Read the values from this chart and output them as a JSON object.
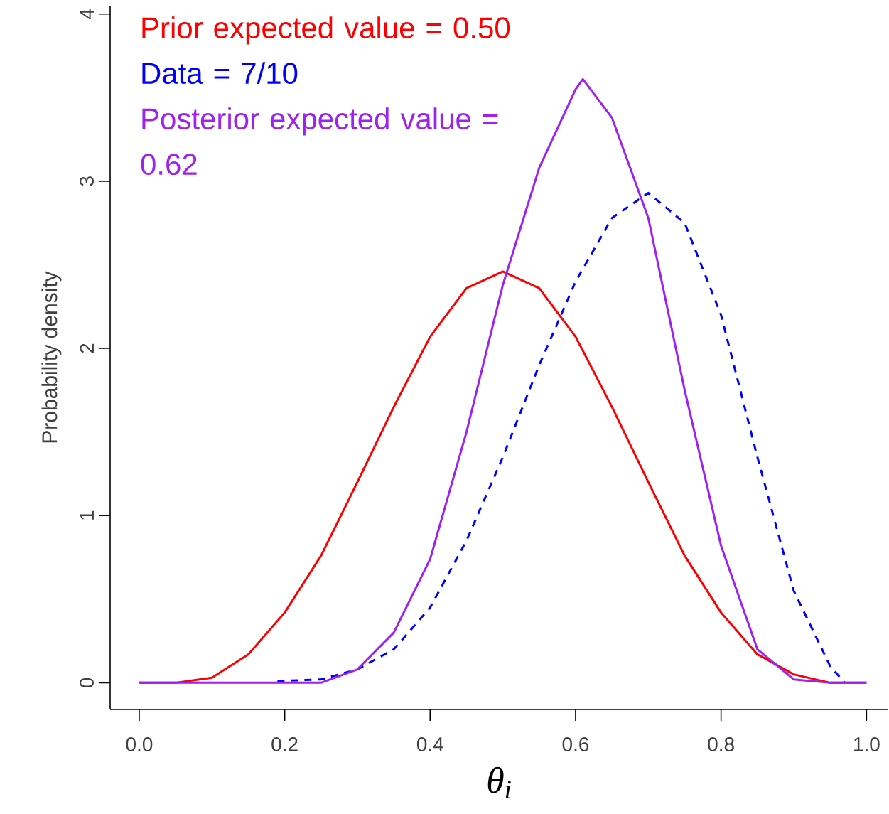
{
  "chart_data": {
    "type": "line",
    "xlabel": "θ$_{i}$",
    "ylabel": "Probability density",
    "xlim": [
      -0.04,
      1.03
    ],
    "ylim": [
      -0.16,
      4.05
    ],
    "xticks": [
      {
        "value": 0,
        "label": "0.0"
      },
      0.2,
      0.4,
      0.6,
      0.8,
      {
        "value": 1,
        "label": "1.0"
      }
    ],
    "yticks": [
      0,
      1,
      2,
      3,
      4
    ],
    "annotations": [
      "Prior expected value = 0.50",
      "Data = 7/10",
      "Posterior expected value = 0.62"
    ],
    "series": [
      {
        "color": "#ff0000",
        "line_style": "solid",
        "x": [
          0,
          0.05,
          0.1,
          0.15,
          0.2,
          0.25,
          0.3,
          0.35,
          0.4,
          0.45,
          0.5,
          0.55,
          0.6,
          0.65,
          0.7,
          0.75,
          0.8,
          0.85,
          0.9,
          0.95,
          1
        ],
        "values": [
          0,
          0,
          0.03,
          0.17,
          0.42,
          0.76,
          1.2,
          1.65,
          2.07,
          2.36,
          2.46,
          2.36,
          2.07,
          1.65,
          1.2,
          0.76,
          0.42,
          0.17,
          0.05,
          0,
          0
        ]
      },
      {
        "color": "#0000ff",
        "line_style": "dashed",
        "x": [
          0.19,
          0.25,
          0.3,
          0.35,
          0.4,
          0.45,
          0.5,
          0.55,
          0.6,
          0.65,
          0.7,
          0.75,
          0.8,
          0.85,
          0.9,
          0.95,
          0.97
        ],
        "values": [
          0.01,
          0.02,
          0.08,
          0.2,
          0.45,
          0.85,
          1.35,
          1.9,
          2.4,
          2.78,
          2.93,
          2.75,
          2.2,
          1.35,
          0.55,
          0.1,
          0
        ]
      },
      {
        "color": "#a020f0",
        "line_style": "solid",
        "x": [
          0,
          0.1,
          0.2,
          0.25,
          0.3,
          0.35,
          0.4,
          0.45,
          0.5,
          0.55,
          0.6,
          0.61,
          0.65,
          0.7,
          0.75,
          0.8,
          0.85,
          0.9,
          0.95,
          1
        ],
        "values": [
          0,
          0,
          0,
          0,
          0.08,
          0.3,
          0.74,
          1.5,
          2.38,
          3.08,
          3.55,
          3.61,
          3.38,
          2.78,
          1.75,
          0.82,
          0.2,
          0.02,
          0,
          0
        ]
      }
    ]
  }
}
